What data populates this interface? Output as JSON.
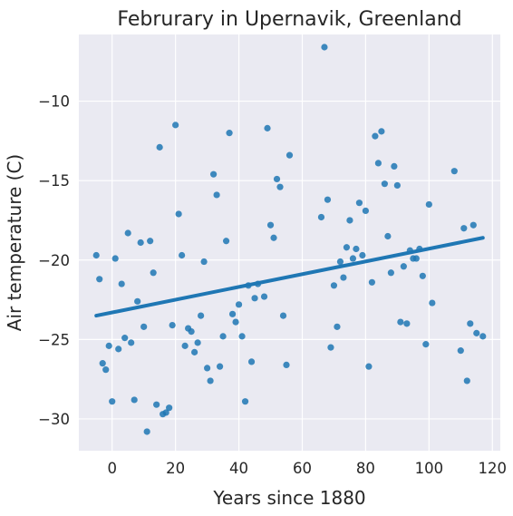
{
  "chart_data": {
    "type": "scatter",
    "title": "Februrary in Upernavik, Greenland",
    "xlabel": "Years since 1880",
    "ylabel": "Air temperature (C)",
    "xlim": [
      -10.5,
      122.5
    ],
    "ylim": [
      -32,
      -5.8
    ],
    "xticks": [
      0,
      20,
      40,
      60,
      80,
      100,
      120
    ],
    "yticks": [
      -30,
      -25,
      -20,
      -15,
      -10
    ],
    "xtick_labels": [
      "0",
      "20",
      "40",
      "60",
      "80",
      "100",
      "120"
    ],
    "ytick_labels": [
      "−30",
      "−25",
      "−20",
      "−15",
      "−10"
    ],
    "grid": true,
    "colors": {
      "points": "#1f77b4",
      "line": "#1f77b4",
      "background": "#eaeaf2"
    },
    "trend": {
      "x": [
        -5,
        117
      ],
      "y": [
        -23.5,
        -18.6
      ]
    },
    "points": [
      [
        -5,
        -19.7
      ],
      [
        -4,
        -21.2
      ],
      [
        -3,
        -26.5
      ],
      [
        -2,
        -26.9
      ],
      [
        -1,
        -25.4
      ],
      [
        0,
        -28.9
      ],
      [
        1,
        -19.9
      ],
      [
        2,
        -25.6
      ],
      [
        3,
        -21.5
      ],
      [
        4,
        -24.9
      ],
      [
        5,
        -18.3
      ],
      [
        6,
        -25.2
      ],
      [
        7,
        -28.8
      ],
      [
        8,
        -22.6
      ],
      [
        9,
        -18.9
      ],
      [
        10,
        -24.2
      ],
      [
        11,
        -30.8
      ],
      [
        12,
        -18.8
      ],
      [
        13,
        -20.8
      ],
      [
        14,
        -29.1
      ],
      [
        15,
        -12.9
      ],
      [
        16,
        -29.7
      ],
      [
        17,
        -29.6
      ],
      [
        18,
        -29.3
      ],
      [
        19,
        -24.1
      ],
      [
        20,
        -11.5
      ],
      [
        21,
        -17.1
      ],
      [
        22,
        -19.7
      ],
      [
        23,
        -25.4
      ],
      [
        24,
        -24.3
      ],
      [
        25,
        -24.5
      ],
      [
        26,
        -25.8
      ],
      [
        27,
        -25.2
      ],
      [
        28,
        -23.5
      ],
      [
        29,
        -20.1
      ],
      [
        30,
        -26.8
      ],
      [
        31,
        -27.6
      ],
      [
        32,
        -14.6
      ],
      [
        33,
        -15.9
      ],
      [
        34,
        -26.7
      ],
      [
        35,
        -24.8
      ],
      [
        36,
        -18.8
      ],
      [
        37,
        -12.0
      ],
      [
        38,
        -23.4
      ],
      [
        39,
        -23.9
      ],
      [
        40,
        -22.8
      ],
      [
        41,
        -24.8
      ],
      [
        42,
        -28.9
      ],
      [
        43,
        -21.6
      ],
      [
        44,
        -26.4
      ],
      [
        45,
        -22.4
      ],
      [
        46,
        -21.5
      ],
      [
        48,
        -22.3
      ],
      [
        49,
        -11.7
      ],
      [
        50,
        -17.8
      ],
      [
        51,
        -18.6
      ],
      [
        52,
        -14.9
      ],
      [
        53,
        -15.4
      ],
      [
        54,
        -23.5
      ],
      [
        55,
        -26.6
      ],
      [
        56,
        -13.4
      ],
      [
        66,
        -17.3
      ],
      [
        67,
        -6.6
      ],
      [
        68,
        -16.2
      ],
      [
        69,
        -25.5
      ],
      [
        70,
        -21.6
      ],
      [
        71,
        -24.2
      ],
      [
        72,
        -20.1
      ],
      [
        73,
        -21.1
      ],
      [
        74,
        -19.2
      ],
      [
        75,
        -17.5
      ],
      [
        76,
        -19.9
      ],
      [
        77,
        -19.3
      ],
      [
        78,
        -16.4
      ],
      [
        79,
        -19.7
      ],
      [
        80,
        -16.9
      ],
      [
        81,
        -26.7
      ],
      [
        82,
        -21.4
      ],
      [
        83,
        -12.2
      ],
      [
        84,
        -13.9
      ],
      [
        85,
        -11.9
      ],
      [
        86,
        -15.2
      ],
      [
        87,
        -18.5
      ],
      [
        88,
        -20.8
      ],
      [
        89,
        -14.1
      ],
      [
        90,
        -15.3
      ],
      [
        91,
        -23.9
      ],
      [
        92,
        -20.4
      ],
      [
        93,
        -24.0
      ],
      [
        94,
        -19.4
      ],
      [
        95,
        -19.9
      ],
      [
        96,
        -19.9
      ],
      [
        97,
        -19.3
      ],
      [
        98,
        -21.0
      ],
      [
        99,
        -25.3
      ],
      [
        100,
        -16.5
      ],
      [
        101,
        -22.7
      ],
      [
        108,
        -14.4
      ],
      [
        110,
        -25.7
      ],
      [
        111,
        -18.0
      ],
      [
        112,
        -27.6
      ],
      [
        113,
        -24.0
      ],
      [
        114,
        -17.8
      ],
      [
        115,
        -24.6
      ],
      [
        117,
        -24.8
      ]
    ]
  }
}
